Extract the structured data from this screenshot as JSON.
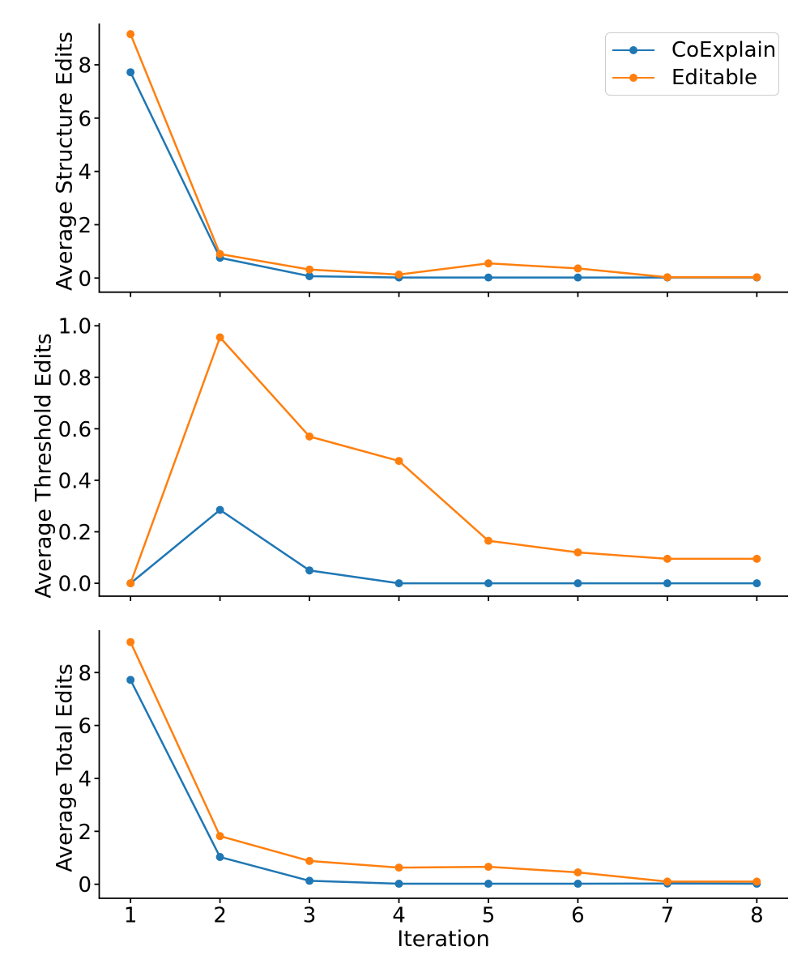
{
  "figure": {
    "background": "#ffffff",
    "text_color": "#000000",
    "axis_color": "#000000"
  },
  "legend": {
    "position": "upper right of first subplot",
    "items": [
      {
        "label": "CoExplain",
        "color": "#1f77b4"
      },
      {
        "label": "Editable",
        "color": "#ff7f0e"
      }
    ]
  },
  "chart_data": [
    {
      "type": "line",
      "title": "",
      "ylabel": "Average Structure Edits",
      "x": [
        1,
        2,
        3,
        4,
        5,
        6,
        7,
        8
      ],
      "xlim": [
        0.65,
        8.35
      ],
      "ylim": [
        -0.53,
        9.55
      ],
      "yticks": [
        0,
        2,
        4,
        6,
        8
      ],
      "yticklabels": [
        "0",
        "2",
        "4",
        "6",
        "8"
      ],
      "grid": false,
      "legend_visible": true,
      "series": [
        {
          "name": "CoExplain",
          "color": "#1f77b4",
          "values": [
            7.72,
            0.76,
            0.07,
            0.02,
            0.02,
            0.02,
            0.02,
            0.02
          ]
        },
        {
          "name": "Editable",
          "color": "#ff7f0e",
          "values": [
            9.15,
            0.9,
            0.32,
            0.13,
            0.55,
            0.36,
            0.03,
            0.03
          ]
        }
      ]
    },
    {
      "type": "line",
      "title": "",
      "ylabel": "Average Threshold Edits",
      "x": [
        1,
        2,
        3,
        4,
        5,
        6,
        7,
        8
      ],
      "xlim": [
        0.65,
        8.35
      ],
      "ylim": [
        -0.05,
        1.01
      ],
      "yticks": [
        0,
        0.2,
        0.4,
        0.6,
        0.8,
        1.0
      ],
      "yticklabels": [
        "0.0",
        "0.2",
        "0.4",
        "0.6",
        "0.8",
        "1.0"
      ],
      "grid": false,
      "legend_visible": false,
      "series": [
        {
          "name": "CoExplain",
          "color": "#1f77b4",
          "values": [
            0.0,
            0.285,
            0.05,
            0.0,
            0.0,
            0.0,
            0.0,
            0.0
          ]
        },
        {
          "name": "Editable",
          "color": "#ff7f0e",
          "values": [
            0.0,
            0.955,
            0.57,
            0.475,
            0.165,
            0.12,
            0.095,
            0.095
          ]
        }
      ]
    },
    {
      "type": "line",
      "title": "",
      "ylabel": "Average Total Edits",
      "xlabel": "Iteration",
      "x": [
        1,
        2,
        3,
        4,
        5,
        6,
        7,
        8
      ],
      "xticklabels": [
        "1",
        "2",
        "3",
        "4",
        "5",
        "6",
        "7",
        "8"
      ],
      "xlim": [
        0.65,
        8.35
      ],
      "ylim": [
        -0.53,
        9.6
      ],
      "yticks": [
        0,
        2,
        4,
        6,
        8
      ],
      "yticklabels": [
        "0",
        "2",
        "4",
        "6",
        "8"
      ],
      "grid": false,
      "legend_visible": false,
      "series": [
        {
          "name": "CoExplain",
          "color": "#1f77b4",
          "values": [
            7.72,
            1.03,
            0.13,
            0.02,
            0.02,
            0.02,
            0.03,
            0.02
          ]
        },
        {
          "name": "Editable",
          "color": "#ff7f0e",
          "values": [
            9.15,
            1.82,
            0.88,
            0.63,
            0.66,
            0.45,
            0.1,
            0.1
          ]
        }
      ]
    }
  ]
}
